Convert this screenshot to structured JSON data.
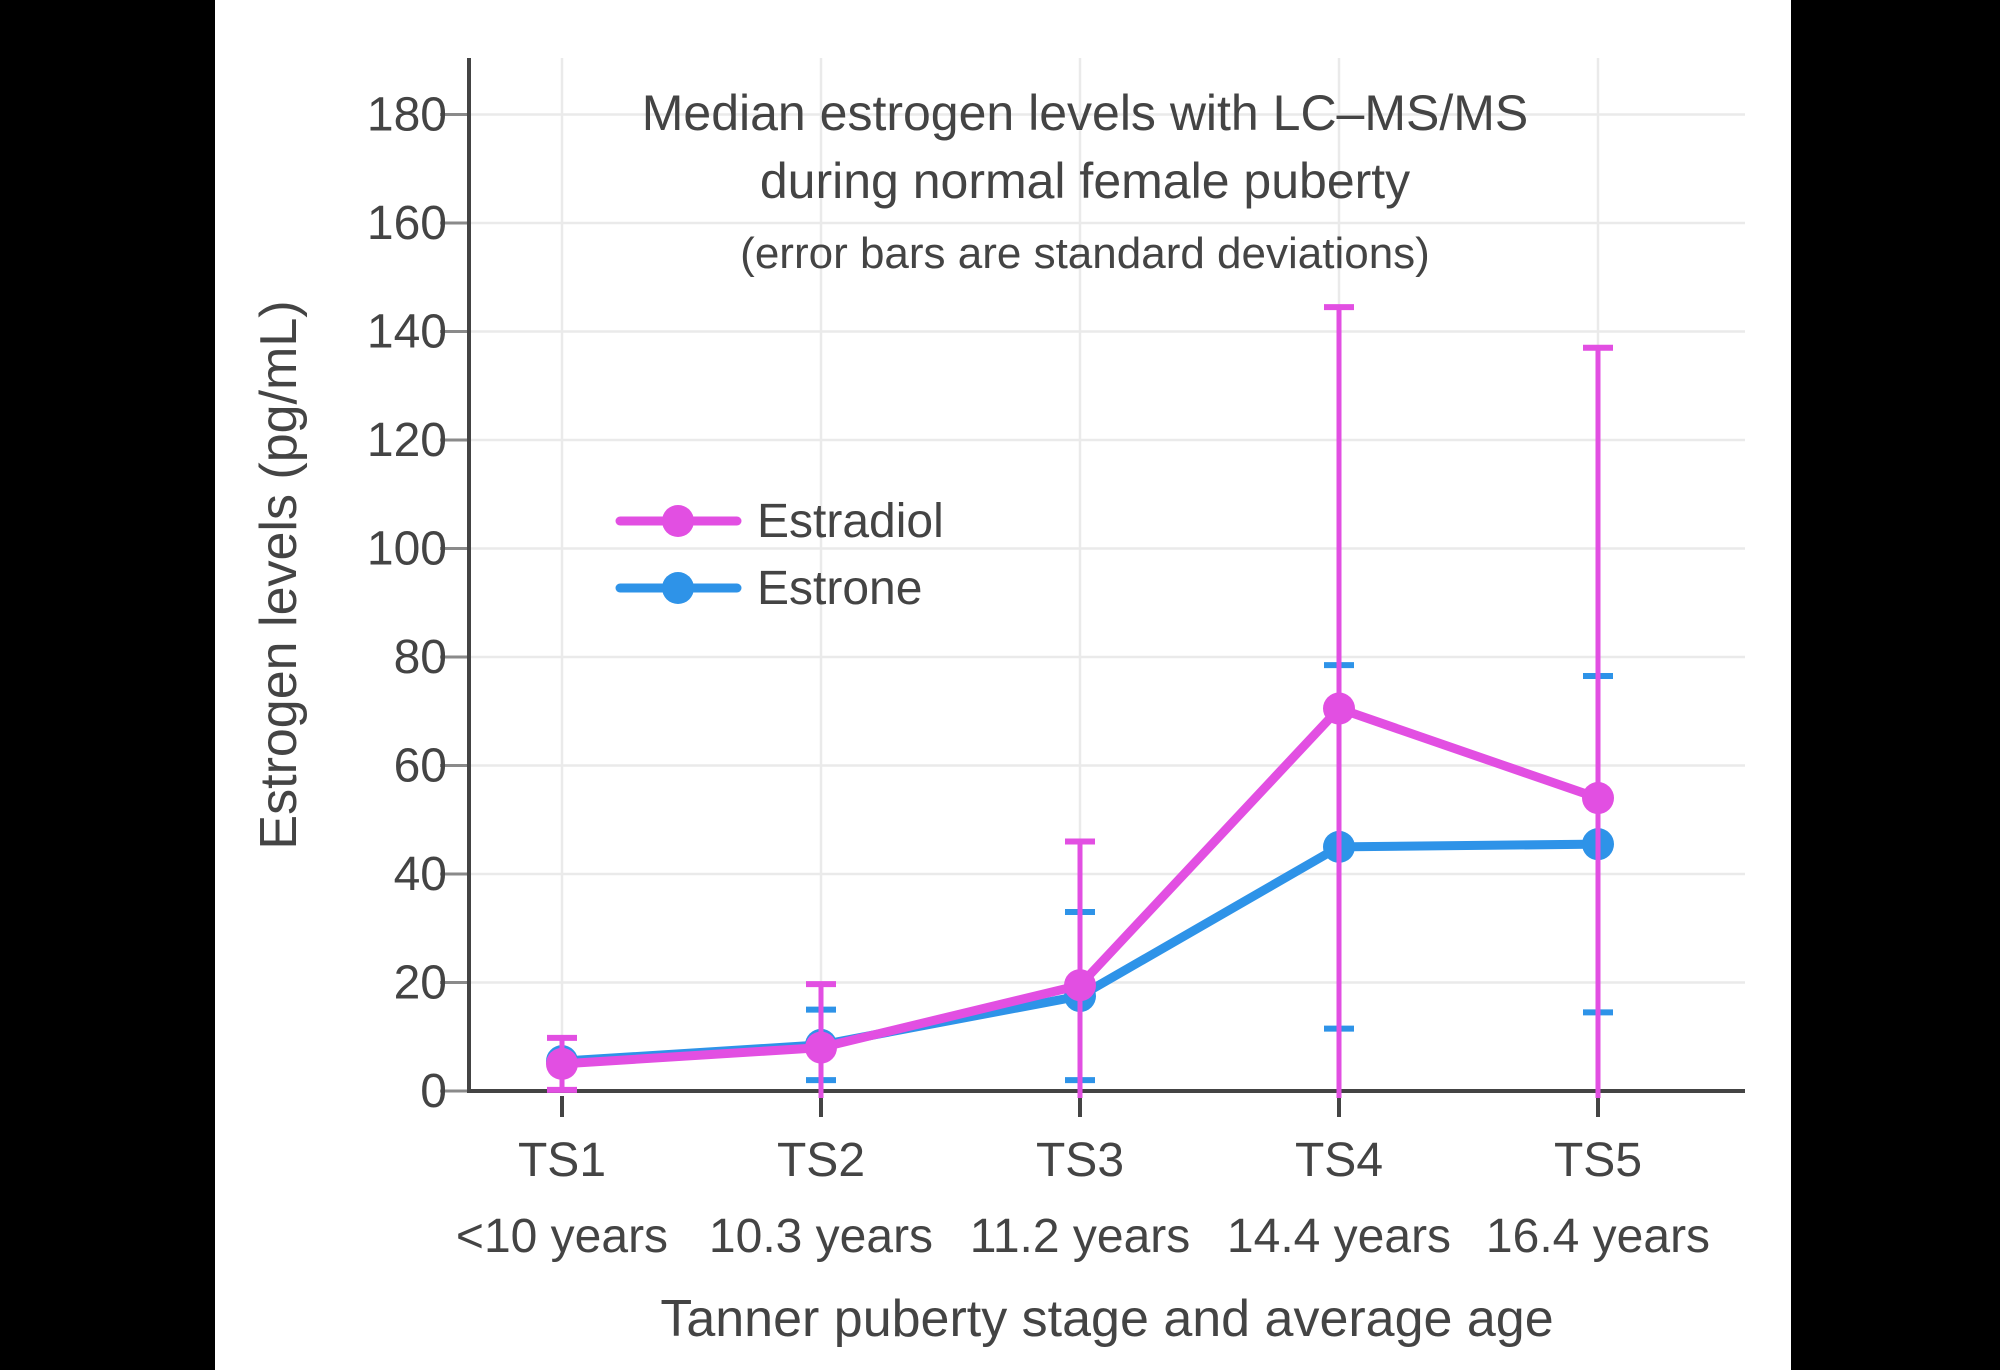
{
  "chart_data": {
    "type": "line",
    "title": "Median estrogen levels with LC–MS/MS during normal female puberty",
    "title_lines": [
      "Median estrogen levels with LC–MS/MS",
      "during normal female puberty"
    ],
    "subtitle": "(error bars are standard deviations)",
    "xlabel": "Tanner puberty stage and average age",
    "ylabel": "Estrogen levels (pg/mL)",
    "categories": [
      "TS1",
      "TS2",
      "TS3",
      "TS4",
      "TS5"
    ],
    "category_sublabels": [
      "<10 years",
      "10.3 years",
      "11.2 years",
      "14.4 years",
      "16.4 years"
    ],
    "yticks": [
      0,
      20,
      40,
      60,
      80,
      100,
      120,
      140,
      160,
      180
    ],
    "ylim": [
      -1,
      190
    ],
    "grid": true,
    "legend_position": "inside-upper-left",
    "colors": {
      "estradiol": "#e24fe2",
      "estrone": "#2e93e8",
      "text": "#444444",
      "gridline": "#eaeaea",
      "axis": "#444444"
    },
    "series": [
      {
        "name": "Estradiol",
        "color": "#e24fe2",
        "values": [
          5,
          8,
          19.5,
          70.5,
          54
        ],
        "sd": [
          4.8,
          11.7,
          26.5,
          74,
          83
        ]
      },
      {
        "name": "Estrone",
        "color": "#2e93e8",
        "values": [
          5.5,
          8.5,
          17.5,
          45,
          45.5
        ],
        "sd": [
          null,
          6.5,
          15.5,
          33.5,
          31
        ]
      }
    ]
  }
}
